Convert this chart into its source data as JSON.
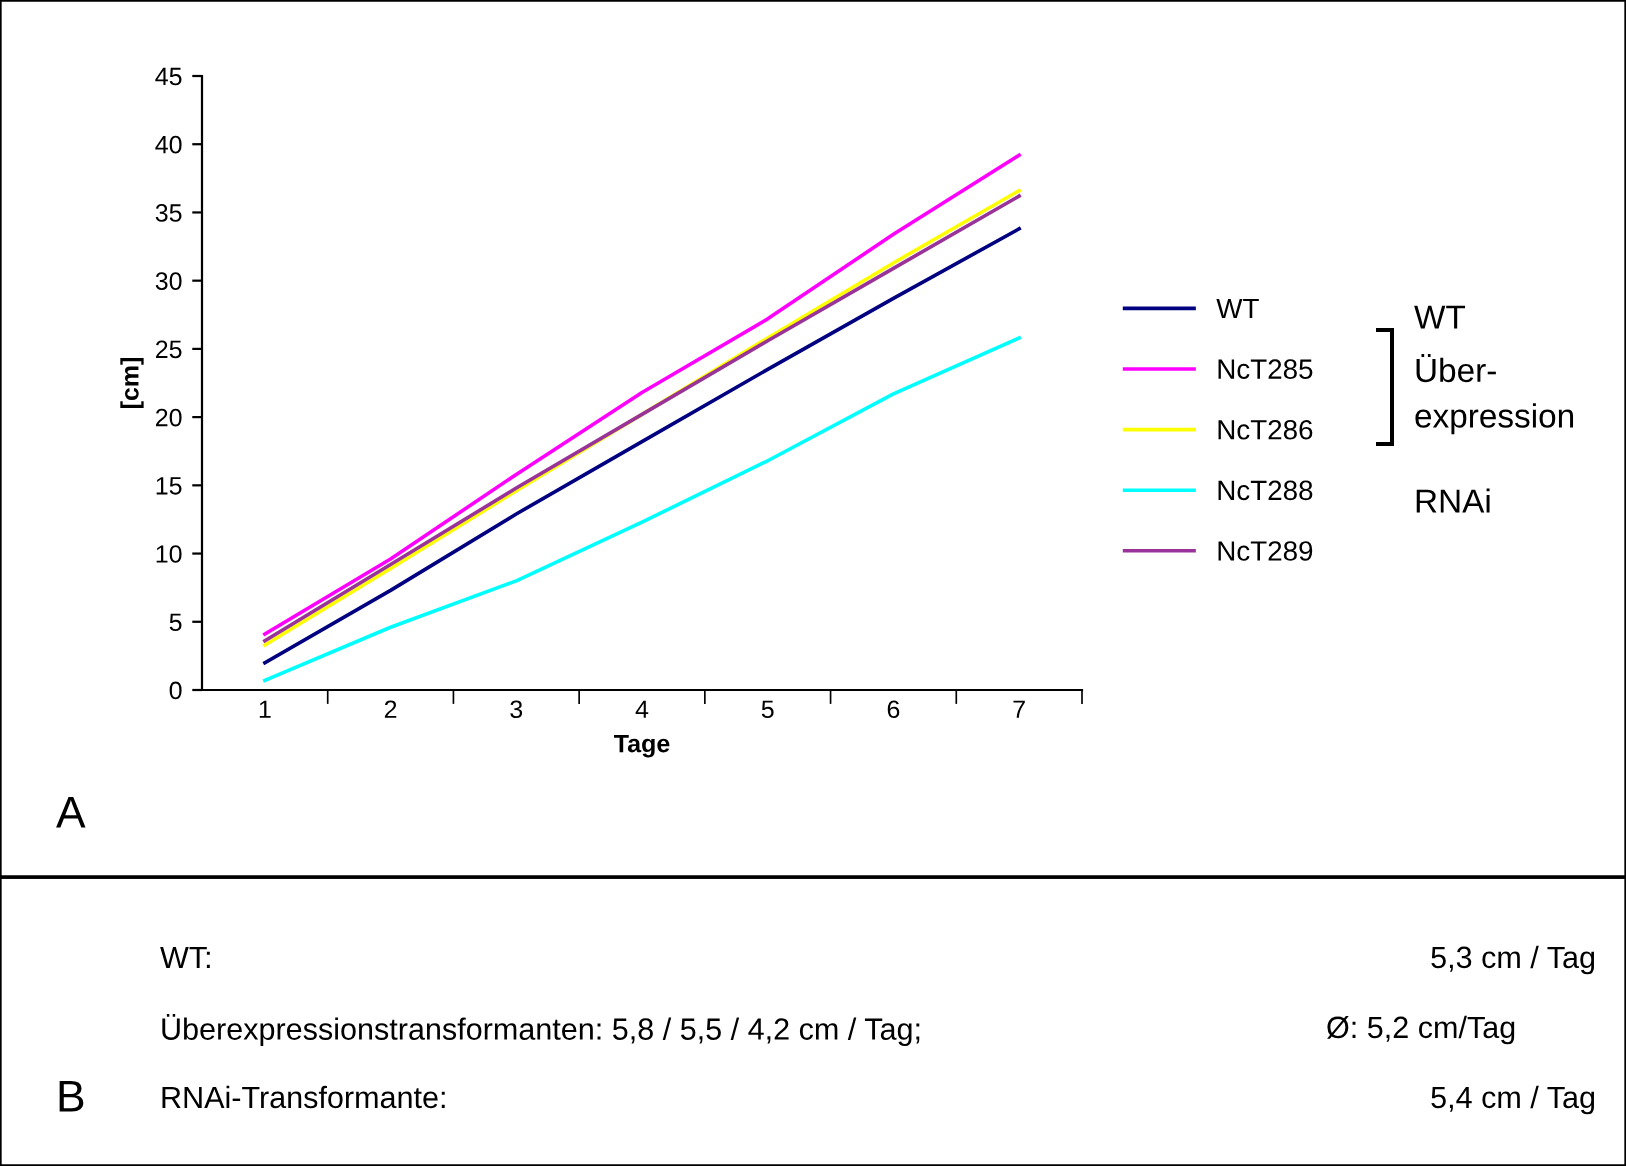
{
  "chart_data": {
    "type": "line",
    "xlabel": "Tage",
    "ylabel": "[cm]",
    "categories": [
      "1",
      "2",
      "3",
      "4",
      "5",
      "6",
      "7"
    ],
    "ylim": [
      0,
      45
    ],
    "yticks": [
      0,
      5,
      10,
      15,
      20,
      25,
      30,
      35,
      40,
      45
    ],
    "grid": false,
    "legend": "right",
    "marker": "none",
    "line_style": "solid",
    "series": [
      {
        "name": "WT",
        "color": "#000080",
        "values": [
          2.0,
          7.3,
          12.9,
          18.2,
          23.5,
          28.7,
          33.8
        ]
      },
      {
        "name": "NcT285",
        "color": "#ff00ff",
        "values": [
          4.1,
          9.6,
          15.8,
          21.8,
          27.2,
          33.4,
          39.2
        ]
      },
      {
        "name": "NcT286",
        "color": "#ffff00",
        "values": [
          3.3,
          8.9,
          14.6,
          20.2,
          25.8,
          31.3,
          36.6
        ]
      },
      {
        "name": "NcT288",
        "color": "#00ffff",
        "values": [
          0.7,
          4.6,
          8.0,
          12.3,
          16.8,
          21.7,
          25.8
        ]
      },
      {
        "name": "NcT289",
        "color": "#993399",
        "values": [
          3.6,
          9.2,
          14.8,
          20.2,
          25.6,
          30.9,
          36.2
        ]
      }
    ],
    "annotations": [
      "A",
      "WT",
      "Über-\nexpression",
      "RNAi",
      "B",
      "WT:",
      "5,3 cm / Tag",
      "Überexpressionstransformanten: 5,8 / 5,5 / 4,2 cm / Tag;",
      "Ø: 5,2 cm/Tag",
      "RNAi-Transformante:",
      "5,4 cm / Tag"
    ]
  }
}
